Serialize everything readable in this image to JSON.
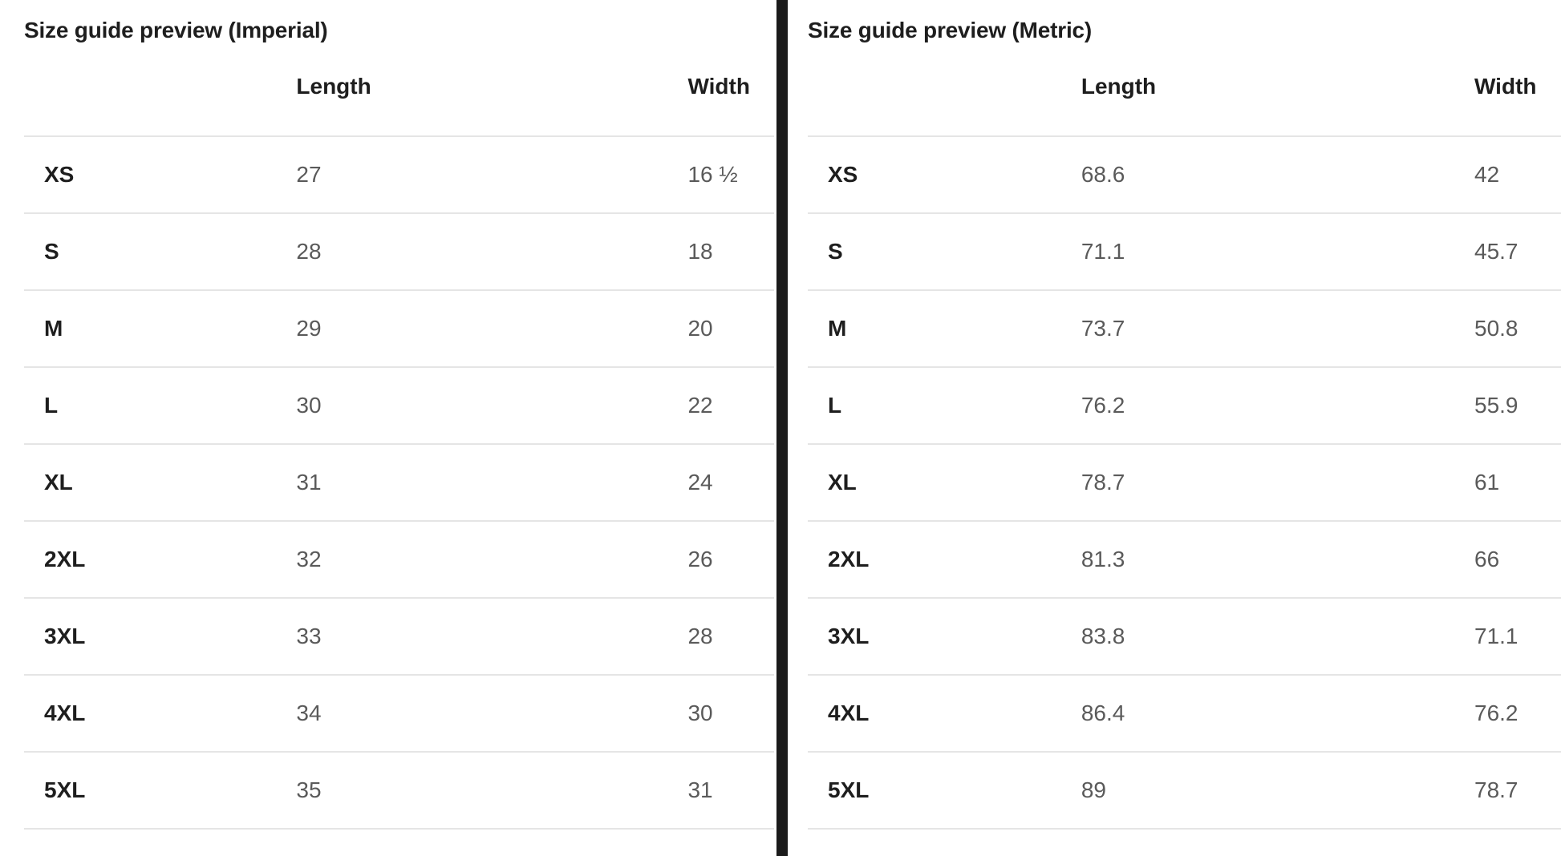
{
  "panels": [
    {
      "title": "Size guide preview (Imperial)",
      "columns": [
        "",
        "Length",
        "Width"
      ],
      "rows": [
        [
          "XS",
          "27",
          "16 ½"
        ],
        [
          "S",
          "28",
          "18"
        ],
        [
          "M",
          "29",
          "20"
        ],
        [
          "L",
          "30",
          "22"
        ],
        [
          "XL",
          "31",
          "24"
        ],
        [
          "2XL",
          "32",
          "26"
        ],
        [
          "3XL",
          "33",
          "28"
        ],
        [
          "4XL",
          "34",
          "30"
        ],
        [
          "5XL",
          "35",
          "31"
        ]
      ]
    },
    {
      "title": "Size guide preview (Metric)",
      "columns": [
        "",
        "Length",
        "Width"
      ],
      "rows": [
        [
          "XS",
          "68.6",
          "42"
        ],
        [
          "S",
          "71.1",
          "45.7"
        ],
        [
          "M",
          "73.7",
          "50.8"
        ],
        [
          "L",
          "76.2",
          "55.9"
        ],
        [
          "XL",
          "78.7",
          "61"
        ],
        [
          "2XL",
          "81.3",
          "66"
        ],
        [
          "3XL",
          "83.8",
          "71.1"
        ],
        [
          "4XL",
          "86.4",
          "76.2"
        ],
        [
          "5XL",
          "89",
          "78.7"
        ]
      ]
    }
  ],
  "colors": {
    "text_dark": "#1e1e1e",
    "text_value": "#5a5a5a",
    "row_border": "#e5e5e5",
    "divider": "#1b1b1b",
    "background": "#ffffff"
  }
}
